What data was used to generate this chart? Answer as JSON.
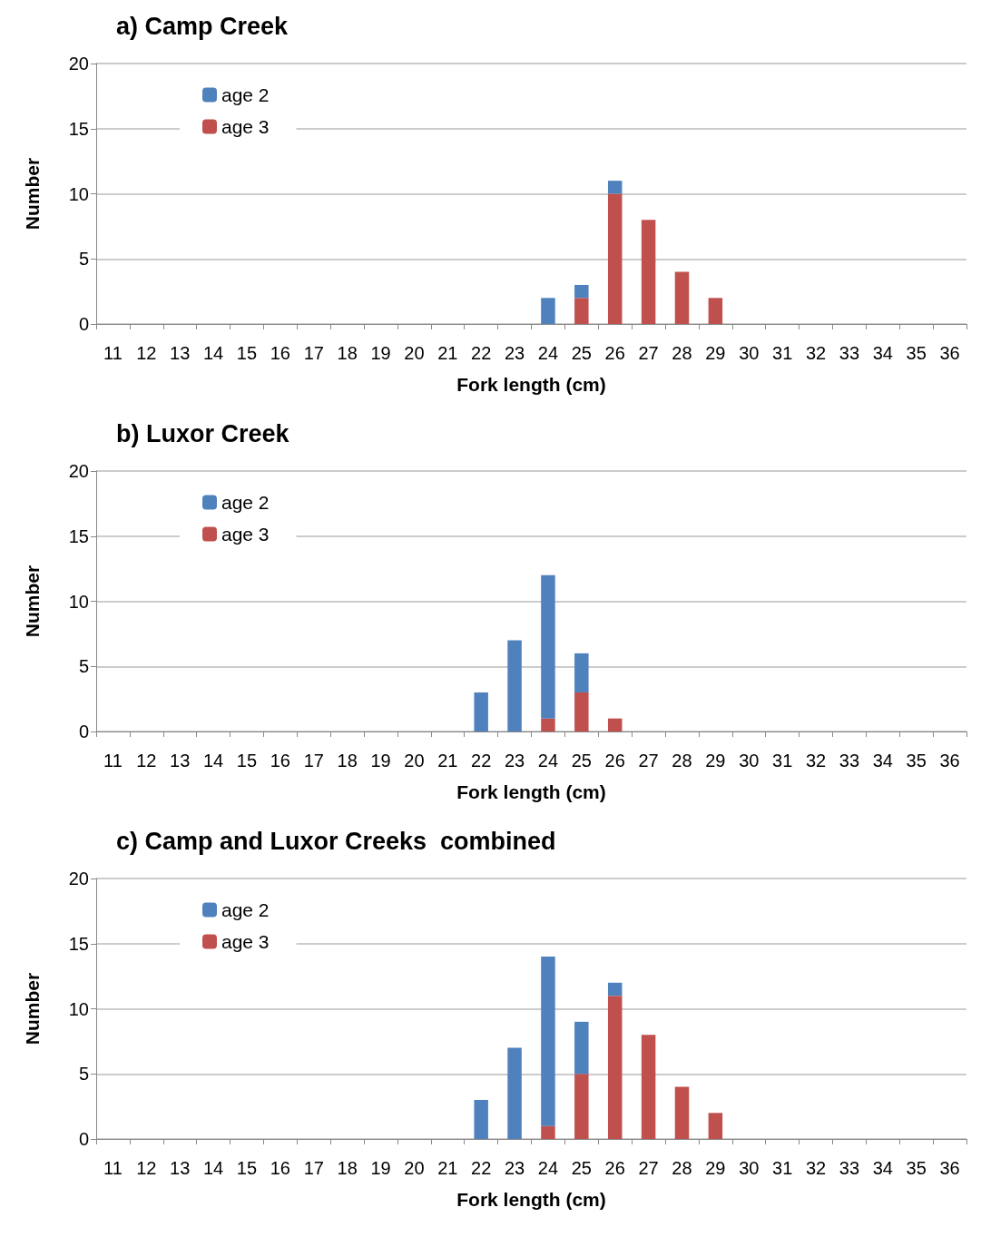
{
  "chart_data": [
    {
      "type": "bar",
      "title": "a) Camp Creek",
      "xlabel": "Fork length (cm)",
      "ylabel": "Number",
      "categories": [
        "11",
        "12",
        "13",
        "14",
        "15",
        "16",
        "17",
        "18",
        "19",
        "20",
        "21",
        "22",
        "23",
        "24",
        "25",
        "26",
        "27",
        "28",
        "29",
        "30",
        "31",
        "32",
        "33",
        "34",
        "35",
        "36"
      ],
      "stacked": true,
      "ylim": [
        0,
        20
      ],
      "yticks": [
        0,
        5,
        10,
        15,
        20
      ],
      "grid": "y",
      "legend": "top left",
      "series": [
        {
          "name": "age 3",
          "color": "#c0504d",
          "values": [
            0,
            0,
            0,
            0,
            0,
            0,
            0,
            0,
            0,
            0,
            0,
            0,
            0,
            0,
            2,
            10,
            8,
            4,
            2,
            0,
            0,
            0,
            0,
            0,
            0,
            0
          ]
        },
        {
          "name": "age 2",
          "color": "#4f81bd",
          "values": [
            0,
            0,
            0,
            0,
            0,
            0,
            0,
            0,
            0,
            0,
            0,
            0,
            0,
            2,
            1,
            1,
            0,
            0,
            0,
            0,
            0,
            0,
            0,
            0,
            0,
            0
          ]
        }
      ]
    },
    {
      "type": "bar",
      "title": "b) Luxor Creek",
      "xlabel": "Fork length (cm)",
      "ylabel": "Number",
      "categories": [
        "11",
        "12",
        "13",
        "14",
        "15",
        "16",
        "17",
        "18",
        "19",
        "20",
        "21",
        "22",
        "23",
        "24",
        "25",
        "26",
        "27",
        "28",
        "29",
        "30",
        "31",
        "32",
        "33",
        "34",
        "35",
        "36"
      ],
      "stacked": true,
      "ylim": [
        0,
        20
      ],
      "yticks": [
        0,
        5,
        10,
        15,
        20
      ],
      "grid": "y",
      "legend": "top left",
      "series": [
        {
          "name": "age 3",
          "color": "#c0504d",
          "values": [
            0,
            0,
            0,
            0,
            0,
            0,
            0,
            0,
            0,
            0,
            0,
            0,
            0,
            1,
            3,
            1,
            0,
            0,
            0,
            0,
            0,
            0,
            0,
            0,
            0,
            0
          ]
        },
        {
          "name": "age 2",
          "color": "#4f81bd",
          "values": [
            0,
            0,
            0,
            0,
            0,
            0,
            0,
            0,
            0,
            0,
            0,
            3,
            7,
            11,
            3,
            0,
            0,
            0,
            0,
            0,
            0,
            0,
            0,
            0,
            0,
            0
          ]
        }
      ]
    },
    {
      "type": "bar",
      "title": "c) Camp and Luxor Creeks  combined",
      "xlabel": "Fork length (cm)",
      "ylabel": "Number",
      "categories": [
        "11",
        "12",
        "13",
        "14",
        "15",
        "16",
        "17",
        "18",
        "19",
        "20",
        "21",
        "22",
        "23",
        "24",
        "25",
        "26",
        "27",
        "28",
        "29",
        "30",
        "31",
        "32",
        "33",
        "34",
        "35",
        "36"
      ],
      "stacked": true,
      "ylim": [
        0,
        20
      ],
      "yticks": [
        0,
        5,
        10,
        15,
        20
      ],
      "grid": "y",
      "legend": "top left",
      "series": [
        {
          "name": "age 3",
          "color": "#c0504d",
          "values": [
            0,
            0,
            0,
            0,
            0,
            0,
            0,
            0,
            0,
            0,
            0,
            0,
            0,
            1,
            5,
            11,
            8,
            4,
            2,
            0,
            0,
            0,
            0,
            0,
            0,
            0
          ]
        },
        {
          "name": "age 2",
          "color": "#4f81bd",
          "values": [
            0,
            0,
            0,
            0,
            0,
            0,
            0,
            0,
            0,
            0,
            0,
            3,
            7,
            13,
            4,
            1,
            0,
            0,
            0,
            0,
            0,
            0,
            0,
            0,
            0,
            0
          ]
        }
      ]
    }
  ]
}
